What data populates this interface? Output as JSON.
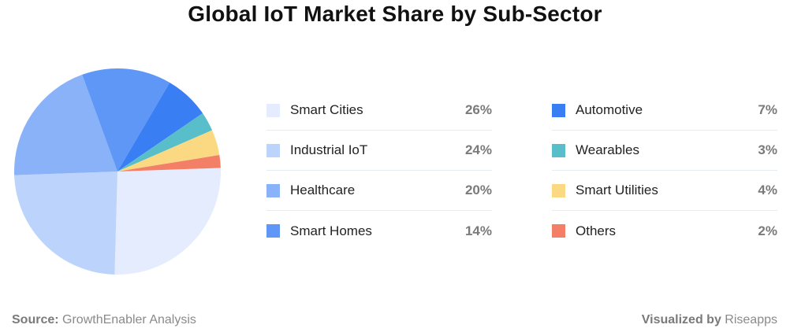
{
  "title": "Global IoT Market Share by Sub-Sector",
  "chart_data": {
    "type": "pie",
    "title": "Global IoT Market Share by Sub-Sector",
    "legend_placement": "right",
    "slices": [
      {
        "label": "Smart Cities",
        "value": 26,
        "display": "26%",
        "color": "#e4ecfd"
      },
      {
        "label": "Industrial IoT",
        "value": 24,
        "display": "24%",
        "color": "#bcd3fb"
      },
      {
        "label": "Healthcare",
        "value": 20,
        "display": "20%",
        "color": "#89b2f9"
      },
      {
        "label": "Smart Homes",
        "value": 14,
        "display": "14%",
        "color": "#5f97f7"
      },
      {
        "label": "Automotive",
        "value": 7,
        "display": "7%",
        "color": "#3a7ef3"
      },
      {
        "label": "Wearables",
        "value": 3,
        "display": "3%",
        "color": "#58bfca"
      },
      {
        "label": "Smart Utilities",
        "value": 4,
        "display": "4%",
        "color": "#fbd983"
      },
      {
        "label": "Others",
        "value": 2,
        "display": "2%",
        "color": "#f27f66"
      }
    ]
  },
  "footer": {
    "source_label": "Source:",
    "source_value": "GrowthEnabler Analysis",
    "visualized_label": "Visualized by",
    "visualized_value": "Riseapps"
  }
}
